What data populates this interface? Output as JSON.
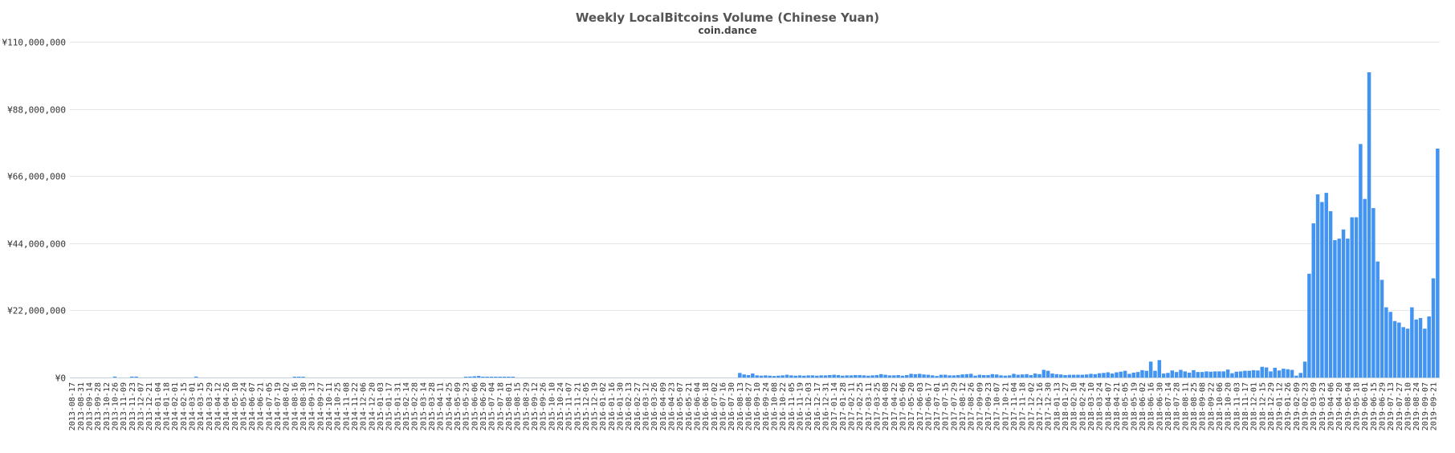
{
  "chart_data": {
    "type": "bar",
    "title": "Weekly LocalBitcoins Volume (Chinese Yuan)",
    "subtitle": "coin.dance",
    "xlabel": "",
    "ylabel": "",
    "ylim": [
      0,
      110000000
    ],
    "y_ticks": [
      0,
      22000000,
      44000000,
      66000000,
      88000000,
      110000000
    ],
    "y_tick_labels": [
      "¥0",
      "¥22,000,000",
      "¥44,000,000",
      "¥66,000,000",
      "¥88,000,000",
      "¥110,000,000"
    ],
    "start_date": "2013-08-17",
    "interval_days": 7,
    "label_every": 2,
    "bar_color": "#4394f0",
    "grid": true,
    "values": [
      0,
      0,
      0,
      0,
      0,
      0,
      0,
      0,
      0,
      0,
      300000,
      0,
      0,
      0,
      300000,
      300000,
      0,
      0,
      0,
      0,
      0,
      0,
      0,
      0,
      0,
      0,
      0,
      0,
      0,
      300000,
      0,
      0,
      0,
      0,
      0,
      0,
      0,
      0,
      0,
      0,
      0,
      0,
      0,
      0,
      0,
      0,
      0,
      0,
      0,
      0,
      0,
      0,
      200000,
      200000,
      200000,
      0,
      0,
      0,
      0,
      0,
      0,
      0,
      0,
      0,
      0,
      0,
      0,
      0,
      0,
      0,
      0,
      0,
      0,
      0,
      0,
      0,
      0,
      0,
      0,
      0,
      0,
      0,
      0,
      0,
      0,
      0,
      0,
      0,
      0,
      0,
      0,
      0,
      200000,
      300000,
      400000,
      500000,
      200000,
      200000,
      200000,
      200000,
      200000,
      200000,
      200000,
      200000,
      0,
      0,
      0,
      0,
      0,
      0,
      0,
      0,
      0,
      0,
      0,
      0,
      0,
      0,
      0,
      0,
      0,
      0,
      0,
      0,
      0,
      0,
      0,
      0,
      0,
      0,
      0,
      0,
      0,
      0,
      0,
      0,
      0,
      0,
      0,
      0,
      0,
      0,
      0,
      0,
      0,
      0,
      0,
      0,
      0,
      0,
      0,
      0,
      0,
      0,
      0,
      0,
      1500000,
      1000000,
      800000,
      1300000,
      700000,
      600000,
      700000,
      600000,
      500000,
      600000,
      700000,
      900000,
      700000,
      600000,
      700000,
      600000,
      700000,
      700000,
      600000,
      700000,
      700000,
      800000,
      900000,
      800000,
      600000,
      700000,
      700000,
      800000,
      800000,
      700000,
      600000,
      700000,
      800000,
      1100000,
      900000,
      700000,
      700000,
      800000,
      600000,
      800000,
      1200000,
      1100000,
      1200000,
      1000000,
      900000,
      700000,
      500000,
      900000,
      900000,
      700000,
      700000,
      800000,
      1000000,
      1100000,
      1200000,
      600000,
      900000,
      800000,
      800000,
      1100000,
      1000000,
      700000,
      600000,
      700000,
      1200000,
      900000,
      1000000,
      1100000,
      800000,
      1300000,
      1100000,
      2500000,
      2200000,
      1300000,
      1100000,
      1000000,
      800000,
      900000,
      900000,
      900000,
      900000,
      1000000,
      1200000,
      1100000,
      1400000,
      1500000,
      1700000,
      1300000,
      1700000,
      1900000,
      2200000,
      1200000,
      1600000,
      1800000,
      2400000,
      2200000,
      5200000,
      2200000,
      5700000,
      1300000,
      1500000,
      2300000,
      1800000,
      2500000,
      2000000,
      1600000,
      2400000,
      1800000,
      1800000,
      2000000,
      1900000,
      2000000,
      2000000,
      2000000,
      2600000,
      1400000,
      1900000,
      2000000,
      2200000,
      2200000,
      2400000,
      2300000,
      3500000,
      3300000,
      2000000,
      3200000,
      2300000,
      2900000,
      2700000,
      2500000,
      600000,
      1500000,
      5200000,
      34000000,
      50500000,
      60000000,
      57500000,
      60500000,
      54500000,
      45000000,
      45500000,
      48500000,
      45500000,
      52500000,
      52500000,
      76500000,
      58500000,
      100000000,
      55500000,
      38000000,
      32000000,
      23000000,
      21500000,
      18500000,
      18000000,
      16500000,
      16000000,
      23000000,
      19000000,
      19500000,
      16000000,
      20000000,
      32500000,
      75000000
    ]
  }
}
